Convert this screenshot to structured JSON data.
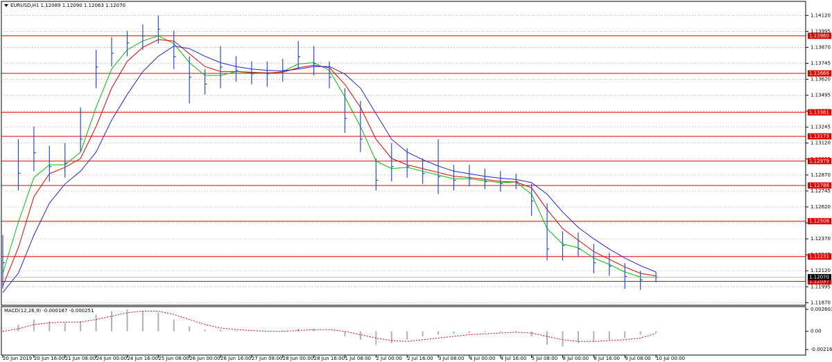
{
  "chart_data": [
    {
      "type": "ohlc",
      "title": "EURUSD,H1  1.12089 1.12090 1.12063 1.12070",
      "color": "#1f4fd8",
      "x": [
        0,
        8,
        16,
        24,
        32,
        40,
        48,
        56,
        64,
        72,
        80,
        88,
        96,
        104,
        112,
        120,
        128,
        136,
        144,
        152,
        160,
        168,
        176,
        184,
        192,
        200,
        208,
        216,
        224,
        232,
        240,
        248,
        256,
        264,
        272,
        280,
        288,
        296,
        304,
        312,
        320,
        328,
        336
      ],
      "high": [
        1.124,
        1.1315,
        1.1325,
        1.131,
        1.1312,
        1.134,
        1.1385,
        1.1395,
        1.14,
        1.1405,
        1.1412,
        1.14,
        1.138,
        1.137,
        1.1388,
        1.138,
        1.1376,
        1.1376,
        1.1378,
        1.1392,
        1.1388,
        1.1376,
        1.1355,
        1.1345,
        1.13,
        1.1312,
        1.1308,
        1.13,
        1.1315,
        1.1295,
        1.1295,
        1.1292,
        1.129,
        1.1288,
        1.128,
        1.1265,
        1.1243,
        1.1242,
        1.1233,
        1.1226,
        1.1218,
        1.1212,
        1.1211
      ],
      "low": [
        1.1198,
        1.1275,
        1.129,
        1.1282,
        1.1285,
        1.1305,
        1.1355,
        1.1372,
        1.138,
        1.1385,
        1.139,
        1.137,
        1.1343,
        1.135,
        1.1355,
        1.136,
        1.1358,
        1.1356,
        1.136,
        1.137,
        1.1365,
        1.1355,
        1.132,
        1.1305,
        1.1275,
        1.1282,
        1.1285,
        1.128,
        1.1272,
        1.1275,
        1.1278,
        1.1276,
        1.1274,
        1.1276,
        1.1255,
        1.122,
        1.122,
        1.1223,
        1.121,
        1.1208,
        1.1198,
        1.1197,
        1.1203
      ],
      "close": [
        1.12183,
        1.12883,
        1.13044,
        1.12936,
        1.12963,
        1.13152,
        1.13716,
        1.13824,
        1.13905,
        1.13959,
        1.14012,
        1.13797,
        1.13636,
        1.13582,
        1.13716,
        1.1369,
        1.13663,
        1.13663,
        1.1369,
        1.13797,
        1.13743,
        1.13636,
        1.13313,
        1.13152,
        1.12829,
        1.12936,
        1.12936,
        1.12883,
        1.12856,
        1.12829,
        1.1284,
        1.12818,
        1.12802,
        1.12818,
        1.12667,
        1.12291,
        1.12318,
        1.12291,
        1.12183,
        1.12156,
        1.12076,
        1.12049,
        1.1207
      ],
      "series": [
        {
          "color": "#00c000",
          "values": [
            1.121,
            1.125,
            1.1285,
            1.1295,
            1.1295,
            1.1305,
            1.134,
            1.137,
            1.1385,
            1.1392,
            1.1396,
            1.139,
            1.1375,
            1.1365,
            1.1365,
            1.1368,
            1.1367,
            1.13665,
            1.1368,
            1.1374,
            1.1375,
            1.1369,
            1.1348,
            1.1325,
            1.1298,
            1.1292,
            1.1293,
            1.129,
            1.1287,
            1.1284,
            1.1284,
            1.12825,
            1.1281,
            1.12815,
            1.1272,
            1.1245,
            1.1233,
            1.123,
            1.1222,
            1.1217,
            1.1211,
            1.1207,
            1.1207
          ]
        },
        {
          "color": "#e00000",
          "values": [
            1.12,
            1.123,
            1.127,
            1.1288,
            1.1293,
            1.13,
            1.1325,
            1.1355,
            1.1376,
            1.1387,
            1.1393,
            1.1392,
            1.1382,
            1.1372,
            1.1368,
            1.1368,
            1.13675,
            1.1367,
            1.13675,
            1.1371,
            1.1373,
            1.1371,
            1.1358,
            1.134,
            1.1315,
            1.13,
            1.1295,
            1.1292,
            1.1289,
            1.1286,
            1.1285,
            1.12835,
            1.1282,
            1.12815,
            1.1277,
            1.126,
            1.1245,
            1.1236,
            1.1227,
            1.1221,
            1.1215,
            1.121,
            1.1208
          ]
        },
        {
          "color": "#2020e0",
          "values": [
            1.1195,
            1.121,
            1.124,
            1.1265,
            1.128,
            1.129,
            1.1305,
            1.133,
            1.135,
            1.1368,
            1.138,
            1.1388,
            1.1386,
            1.138,
            1.1375,
            1.1372,
            1.137,
            1.1369,
            1.13685,
            1.137,
            1.1372,
            1.1372,
            1.1366,
            1.1355,
            1.1335,
            1.1315,
            1.1305,
            1.1299,
            1.1294,
            1.129,
            1.1288,
            1.1286,
            1.12845,
            1.12835,
            1.1281,
            1.1272,
            1.1258,
            1.1246,
            1.1237,
            1.1229,
            1.1222,
            1.1216,
            1.1211
          ]
        }
      ],
      "levels": [
        {
          "value": 1.1396,
          "label": "1.13960"
        },
        1.13666,
        1.13361,
        1.13173,
        1.12979,
        1.12788,
        1.12508,
        1.12231,
        1.12037
      ],
      "level_color": "#e00000",
      "current_price": {
        "value": 1.1207,
        "label": "1.12070"
      },
      "xlim": [
        0,
        413
      ],
      "xticks": [
        {
          "value": 0,
          "label": "20 Jun 2019"
        },
        {
          "value": 16,
          "label": "20 Jun 16:00"
        },
        {
          "value": 32,
          "label": "21 Jun 08:00"
        },
        {
          "value": 48,
          "label": "24 Jun 00:00"
        },
        {
          "value": 64,
          "label": "24 Jun 16:00"
        },
        {
          "value": 80,
          "label": "25 Jun 08:00"
        },
        {
          "value": 96,
          "label": "26 Jun 00:00"
        },
        {
          "value": 112,
          "label": "26 Jun 16:00"
        },
        {
          "value": 128,
          "label": "27 Jun 08:00"
        },
        {
          "value": 144,
          "label": "28 Jun 00:00"
        },
        {
          "value": 160,
          "label": "28 Jun 16:00"
        },
        {
          "value": 176,
          "label": "1 Jul 08:00"
        },
        {
          "value": 192,
          "label": "2 Jul 00:00"
        },
        {
          "value": 208,
          "label": "2 Jul 16:00"
        },
        {
          "value": 224,
          "label": "3 Jul 08:00"
        },
        {
          "value": 240,
          "label": "4 Jul 00:00"
        },
        {
          "value": 256,
          "label": "4 Jul 16:00"
        },
        {
          "value": 272,
          "label": "5 Jul 08:00"
        },
        {
          "value": 288,
          "label": "8 Jul 00:00"
        },
        {
          "value": 304,
          "label": "8 Jul 16:00"
        },
        {
          "value": 320,
          "label": "9 Jul 08:00"
        },
        {
          "value": 336,
          "label": "10 Jul 00:00"
        }
      ],
      "ylim": [
        1.1185,
        1.1423
      ],
      "yticks": [
        {
          "value": 1.1412,
          "label": "1.14120"
        },
        1.13995,
        {
          "value": 1.1387,
          "label": "1.13870"
        },
        1.13745,
        {
          "value": 1.1362,
          "label": "1.13620"
        },
        1.13495,
        {
          "value": 1.1337,
          "label": "1.13370"
        },
        1.13245,
        {
          "value": 1.1312,
          "label": "1.13120"
        },
        1.12995,
        {
          "value": 1.1287,
          "label": "1.12870"
        },
        1.12745,
        {
          "value": 1.1262,
          "label": "1.12620"
        },
        1.12495,
        {
          "value": 1.1237,
          "label": "1.12370"
        },
        1.12245,
        {
          "value": 1.1212,
          "label": "1.12120"
        },
        1.11995,
        {
          "value": 1.1187,
          "label": "1.11870"
        }
      ],
      "grid": true
    },
    {
      "type": "macd",
      "title": "MACD(12,26,9) -0.000187 -0.000251",
      "x": [
        0,
        8,
        16,
        24,
        32,
        40,
        48,
        56,
        64,
        72,
        80,
        88,
        96,
        104,
        112,
        120,
        128,
        136,
        144,
        152,
        160,
        168,
        176,
        184,
        192,
        200,
        208,
        216,
        224,
        232,
        240,
        248,
        256,
        264,
        272,
        280,
        288,
        296,
        304,
        312,
        320,
        328,
        336
      ],
      "series": [
        {
          "color": "#b0b0b0",
          "values": [
            0.0,
            0.0008,
            0.0014,
            0.0012,
            0.001,
            0.0012,
            0.002,
            0.0024,
            0.0026,
            0.0024,
            0.0022,
            0.0014,
            0.0006,
            0.0002,
            0.0002,
            0.0001,
            0.0,
            0.0,
            0.0001,
            0.0003,
            0.0003,
            0.0,
            -0.0006,
            -0.001,
            -0.0016,
            -0.0014,
            -0.001,
            -0.0006,
            -0.0004,
            -0.0003,
            -0.0002,
            -0.0001,
            -0.0001,
            -0.0001,
            -0.0006,
            -0.0016,
            -0.0018,
            -0.0014,
            -0.0012,
            -0.001,
            -0.0008,
            -0.0004,
            -0.000187
          ]
        },
        {
          "color": "#e00000",
          "values": [
            0.0,
            0.0003,
            0.0008,
            0.001,
            0.0011,
            0.0011,
            0.0014,
            0.0018,
            0.0022,
            0.0024,
            0.0024,
            0.002,
            0.0014,
            0.0008,
            0.0004,
            0.0002,
            0.0001,
            0.0,
            0.0,
            0.0001,
            0.0002,
            0.0002,
            0.0,
            -0.0004,
            -0.0008,
            -0.0011,
            -0.0012,
            -0.001,
            -0.0008,
            -0.0006,
            -0.0004,
            -0.0003,
            -0.0002,
            -0.0001,
            -0.0002,
            -0.0006,
            -0.001,
            -0.0012,
            -0.0012,
            -0.0011,
            -0.001,
            -0.0008,
            -0.000251
          ]
        }
      ],
      "ylim": [
        -0.00282,
        0.00293
      ],
      "yticks": [
        0.002603,
        {
          "value": 0,
          "label": "0.00"
        },
        -0.002165
      ]
    }
  ]
}
